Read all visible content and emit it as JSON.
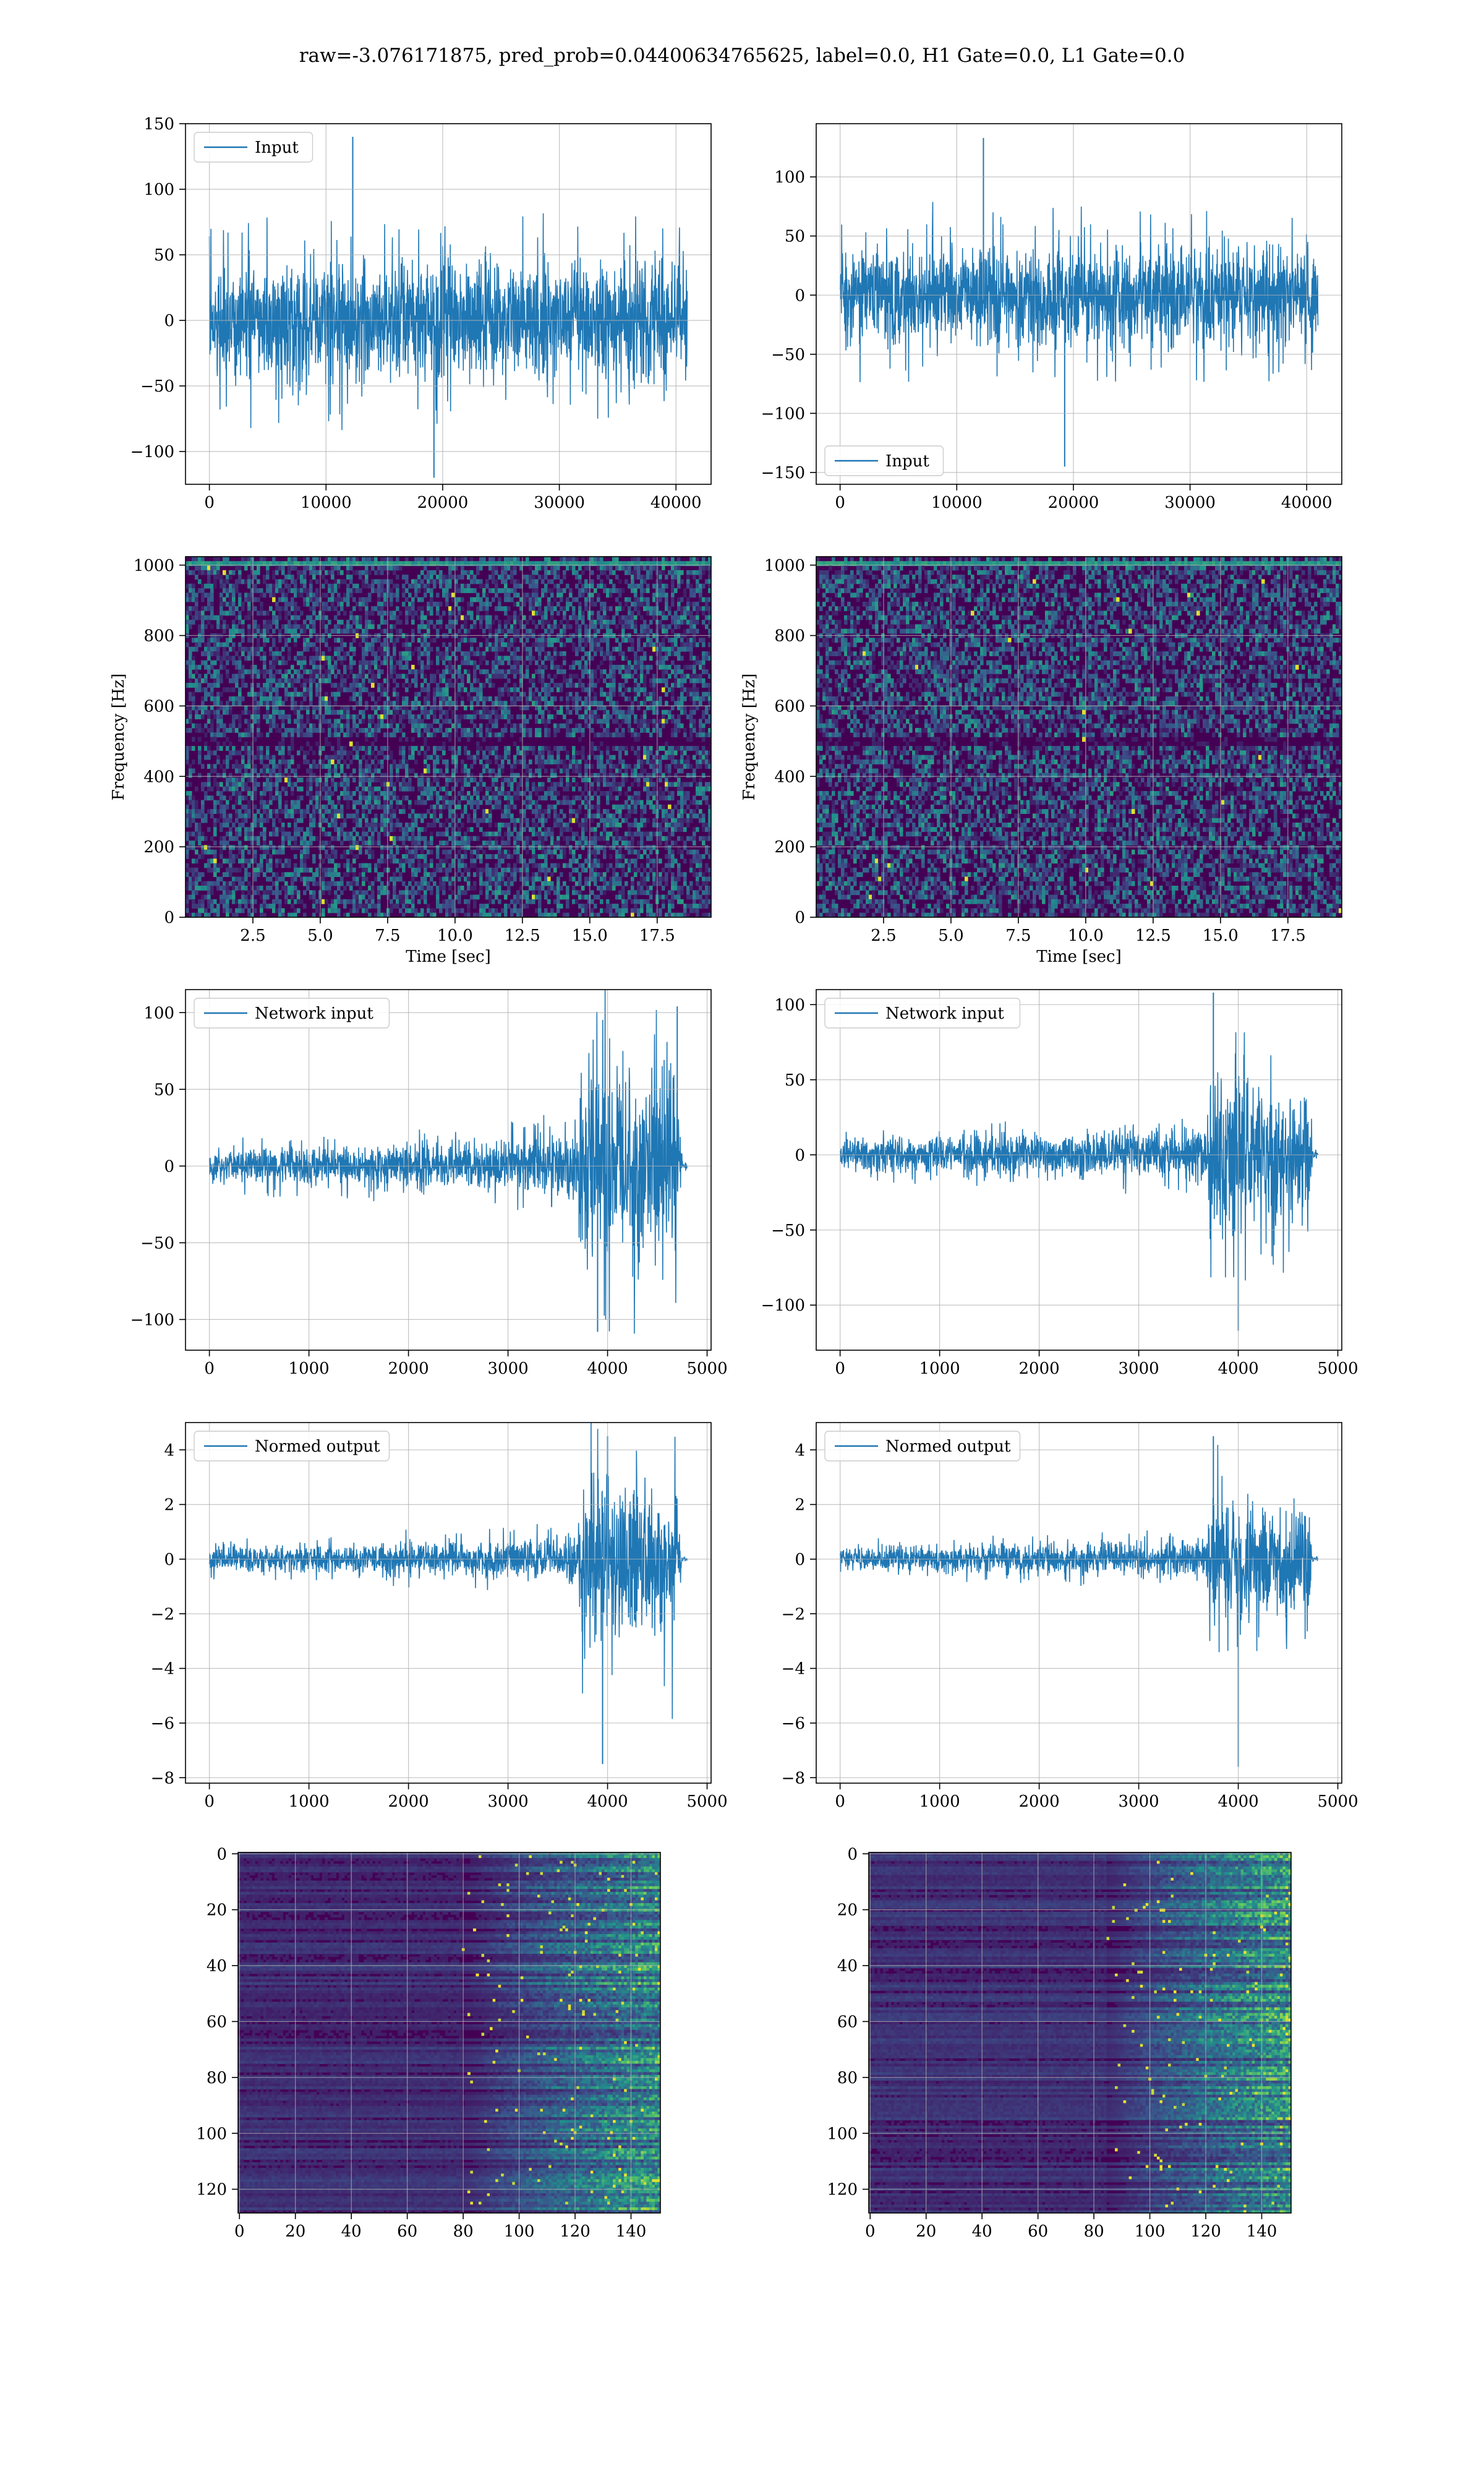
{
  "figure": {
    "title": "raw=-3.076171875, pred_prob=0.04400634765625, label=0.0, H1 Gate=0.0, L1 Gate=0.0"
  },
  "colors": {
    "line": "#1f77b4",
    "grid": "#b0b0b0",
    "viridis_low": "#440154",
    "viridis_mid": "#21918c",
    "viridis_high": "#fde725"
  },
  "chart_data": [
    {
      "id": "h1-input",
      "type": "line",
      "title": "",
      "xlabel": "",
      "ylabel": "",
      "legend": {
        "label": "Input",
        "loc": "upper-left"
      },
      "xlim": [
        -2048,
        43008
      ],
      "ylim": [
        -125,
        150
      ],
      "xticks": [
        0,
        10000,
        20000,
        30000,
        40000
      ],
      "yticks": [
        -100,
        -50,
        0,
        50,
        100,
        150
      ],
      "grid": true,
      "series": [
        {
          "name": "Input",
          "n_points": 40960,
          "body_amplitude": [
            -55,
            55
          ],
          "extremes": [
            -120,
            140
          ]
        }
      ]
    },
    {
      "id": "l1-input",
      "type": "line",
      "title": "",
      "xlabel": "",
      "ylabel": "",
      "legend": {
        "label": "Input",
        "loc": "lower-left"
      },
      "xlim": [
        -2048,
        43008
      ],
      "ylim": [
        -160,
        145
      ],
      "xticks": [
        0,
        10000,
        20000,
        30000,
        40000
      ],
      "yticks": [
        -150,
        -100,
        -50,
        0,
        50,
        100
      ],
      "grid": true,
      "series": [
        {
          "name": "Input",
          "n_points": 40960,
          "body_amplitude": [
            -50,
            50
          ],
          "extremes": [
            -145,
            133
          ]
        }
      ]
    },
    {
      "id": "h1-spectrogram",
      "type": "heatmap",
      "title": "",
      "xlabel": "Time [sec]",
      "ylabel": "Frequency [Hz]",
      "xlim": [
        0,
        19.5
      ],
      "ylim": [
        0,
        1024
      ],
      "xticks": [
        2.5,
        5.0,
        7.5,
        10.0,
        12.5,
        15.0,
        17.5
      ],
      "yticks": [
        0,
        200,
        400,
        600,
        800,
        1000
      ],
      "grid": true,
      "colormap": "viridis",
      "features": {
        "dark_band_hz": 500,
        "top_line_hz": 1000
      }
    },
    {
      "id": "l1-spectrogram",
      "type": "heatmap",
      "title": "",
      "xlabel": "Time [sec]",
      "ylabel": "Frequency [Hz]",
      "xlim": [
        0,
        19.5
      ],
      "ylim": [
        0,
        1024
      ],
      "xticks": [
        2.5,
        5.0,
        7.5,
        10.0,
        12.5,
        15.0,
        17.5
      ],
      "yticks": [
        0,
        200,
        400,
        600,
        800,
        1000
      ],
      "grid": true,
      "colormap": "viridis",
      "features": {
        "dark_band_hz": 500,
        "top_line_hz": 1000
      }
    },
    {
      "id": "h1-network-input",
      "type": "line",
      "title": "",
      "xlabel": "",
      "ylabel": "",
      "legend": {
        "label": "Network input",
        "loc": "upper-left"
      },
      "xlim": [
        -240,
        5040
      ],
      "ylim": [
        -120,
        115
      ],
      "xticks": [
        0,
        1000,
        2000,
        3000,
        4000,
        5000
      ],
      "yticks": [
        -100,
        -50,
        0,
        50,
        100
      ],
      "grid": true,
      "series": [
        {
          "name": "Network input",
          "n_points": 4800,
          "envelope": [
            [
              0,
              12
            ],
            [
              3000,
              20
            ],
            [
              3700,
              25
            ],
            [
              3720,
              80
            ],
            [
              4000,
              85
            ],
            [
              4700,
              70
            ],
            [
              4750,
              3
            ],
            [
              4800,
              3
            ]
          ],
          "peak": [
            4700,
            104
          ],
          "trough": [
            3900,
            -108
          ]
        }
      ]
    },
    {
      "id": "l1-network-input",
      "type": "line",
      "title": "",
      "xlabel": "",
      "ylabel": "",
      "legend": {
        "label": "Network input",
        "loc": "upper-left"
      },
      "xlim": [
        -240,
        5040
      ],
      "ylim": [
        -130,
        110
      ],
      "xticks": [
        0,
        1000,
        2000,
        3000,
        4000,
        5000
      ],
      "yticks": [
        -100,
        -50,
        0,
        50,
        100
      ],
      "grid": true,
      "series": [
        {
          "name": "Network input",
          "n_points": 4800,
          "envelope": [
            [
              0,
              12
            ],
            [
              3000,
              18
            ],
            [
              3700,
              22
            ],
            [
              3720,
              70
            ],
            [
              4000,
              60
            ],
            [
              4700,
              55
            ],
            [
              4750,
              3
            ],
            [
              4800,
              3
            ]
          ],
          "peak": [
            3750,
            108
          ],
          "trough": [
            4000,
            -117
          ]
        }
      ]
    },
    {
      "id": "h1-normed-output",
      "type": "line",
      "title": "",
      "xlabel": "",
      "ylabel": "",
      "legend": {
        "label": "Normed output",
        "loc": "upper-left"
      },
      "xlim": [
        -240,
        5040
      ],
      "ylim": [
        -8.2,
        5
      ],
      "xticks": [
        0,
        1000,
        2000,
        3000,
        4000,
        5000
      ],
      "yticks": [
        -8,
        -6,
        -4,
        -2,
        0,
        2,
        4
      ],
      "grid": true,
      "series": [
        {
          "name": "Normed output",
          "n_points": 4800,
          "envelope": [
            [
              0,
              0.5
            ],
            [
              3000,
              0.8
            ],
            [
              3700,
              1.0
            ],
            [
              3720,
              3.4
            ],
            [
              4000,
              3.6
            ],
            [
              4700,
              3.0
            ],
            [
              4750,
              0.1
            ],
            [
              4800,
              0.1
            ]
          ],
          "peak": [
            4000,
            4.5
          ],
          "trough": [
            3950,
            -7.5
          ]
        }
      ]
    },
    {
      "id": "l1-normed-output",
      "type": "line",
      "title": "",
      "xlabel": "",
      "ylabel": "",
      "legend": {
        "label": "Normed output",
        "loc": "upper-left"
      },
      "xlim": [
        -240,
        5040
      ],
      "ylim": [
        -8.2,
        5
      ],
      "xticks": [
        0,
        1000,
        2000,
        3000,
        4000,
        5000
      ],
      "yticks": [
        -8,
        -6,
        -4,
        -2,
        0,
        2,
        4
      ],
      "grid": true,
      "series": [
        {
          "name": "Normed output",
          "n_points": 4800,
          "envelope": [
            [
              0,
              0.5
            ],
            [
              3000,
              0.7
            ],
            [
              3700,
              0.9
            ],
            [
              3720,
              3.0
            ],
            [
              4000,
              2.5
            ],
            [
              4700,
              2.3
            ],
            [
              4750,
              0.1
            ],
            [
              4800,
              0.1
            ]
          ],
          "peak": [
            3750,
            4.5
          ],
          "trough": [
            4000,
            -7.6
          ]
        }
      ]
    },
    {
      "id": "h1-feature-map",
      "type": "heatmap",
      "title": "",
      "xlabel": "",
      "ylabel": "",
      "xlim": [
        -0.5,
        150.5
      ],
      "ylim": [
        128.5,
        -0.5
      ],
      "xticks": [
        0,
        20,
        40,
        60,
        80,
        100,
        120,
        140
      ],
      "yticks": [
        0,
        20,
        40,
        60,
        80,
        100,
        120
      ],
      "grid": true,
      "colormap": "viridis",
      "features": {
        "rows": 128,
        "cols": 151,
        "activity_start_col": 80
      }
    },
    {
      "id": "l1-feature-map",
      "type": "heatmap",
      "title": "",
      "xlabel": "",
      "ylabel": "",
      "xlim": [
        -0.5,
        150.5
      ],
      "ylim": [
        128.5,
        -0.5
      ],
      "xticks": [
        0,
        20,
        40,
        60,
        80,
        100,
        120,
        140
      ],
      "yticks": [
        0,
        20,
        40,
        60,
        80,
        100,
        120
      ],
      "grid": true,
      "colormap": "viridis",
      "features": {
        "rows": 128,
        "cols": 151,
        "activity_start_col": 85
      }
    }
  ]
}
